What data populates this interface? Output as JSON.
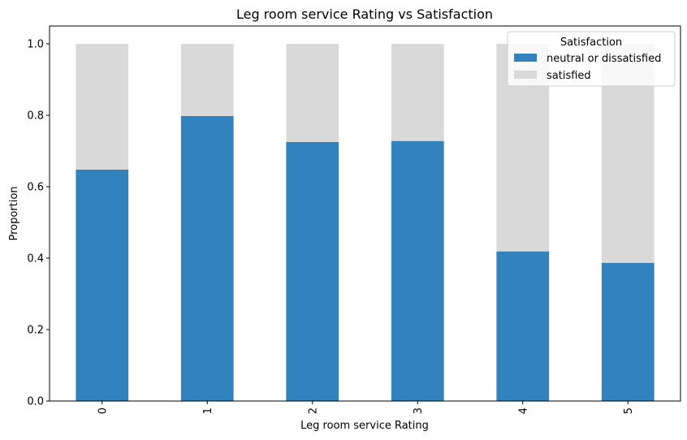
{
  "chart_data": {
    "type": "bar",
    "stacked": true,
    "title": "Leg room service Rating vs Satisfaction",
    "xlabel": "Leg room service Rating",
    "ylabel": "Proportion",
    "categories": [
      "0",
      "1",
      "2",
      "3",
      "4",
      "5"
    ],
    "ylim": [
      0,
      1.05
    ],
    "yticks": [
      "0.0",
      "0.2",
      "0.4",
      "0.6",
      "0.8",
      "1.0"
    ],
    "series": [
      {
        "name": "neutral or dissatisfied",
        "color": "#3182bd",
        "values": [
          0.648,
          0.798,
          0.725,
          0.728,
          0.419,
          0.387
        ]
      },
      {
        "name": "satisfied",
        "color": "#d9d9d9",
        "values": [
          0.352,
          0.202,
          0.275,
          0.272,
          0.581,
          0.613
        ]
      }
    ],
    "legend": {
      "title": "Satisfaction",
      "placement": "top-right"
    },
    "grid": false
  }
}
